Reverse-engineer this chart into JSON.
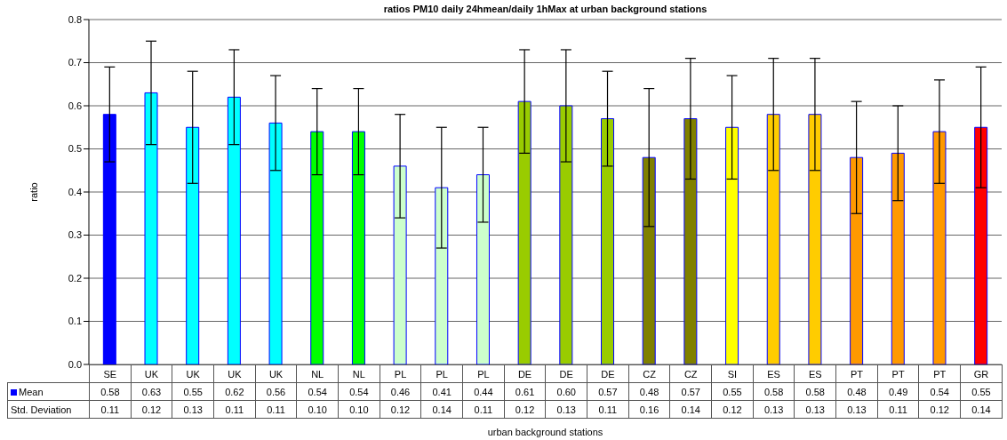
{
  "chart_data": {
    "type": "bar",
    "title": "ratios PM10 daily 24hmean/daily 1hMax at urban background stations",
    "xlabel": "urban background stations",
    "ylabel": "ratio",
    "categories": [
      "SE",
      "UK",
      "UK",
      "UK",
      "UK",
      "NL",
      "NL",
      "PL",
      "PL",
      "PL",
      "DE",
      "DE",
      "DE",
      "CZ",
      "CZ",
      "SI",
      "ES",
      "ES",
      "PT",
      "PT",
      "PT",
      "GR"
    ],
    "series": [
      {
        "name": "Mean",
        "color": "#0000ff",
        "colors": [
          "#0000ff",
          "#00ffff",
          "#00ffff",
          "#00ffff",
          "#00ffff",
          "#00ff00",
          "#00ff00",
          "#ccffcc",
          "#ccffcc",
          "#ccffcc",
          "#99cc00",
          "#99cc00",
          "#99cc00",
          "#808000",
          "#808000",
          "#ffff00",
          "#ffcc00",
          "#ffcc00",
          "#ff9900",
          "#ff9900",
          "#ff9900",
          "#ff0000"
        ],
        "values": [
          0.58,
          0.63,
          0.55,
          0.62,
          0.56,
          0.54,
          0.54,
          0.46,
          0.41,
          0.44,
          0.61,
          0.6,
          0.57,
          0.48,
          0.57,
          0.55,
          0.58,
          0.58,
          0.48,
          0.49,
          0.54,
          0.55
        ],
        "errors": [
          0.11,
          0.12,
          0.13,
          0.11,
          0.11,
          0.1,
          0.1,
          0.12,
          0.14,
          0.11,
          0.12,
          0.13,
          0.11,
          0.16,
          0.14,
          0.12,
          0.13,
          0.13,
          0.13,
          0.11,
          0.12,
          0.14
        ]
      }
    ],
    "value_labels": [
      "0.58",
      "0.63",
      "0.55",
      "0.62",
      "0.56",
      "0.54",
      "0.54",
      "0.46",
      "0.41",
      "0.44",
      "0.61",
      "0.60",
      "0.57",
      "0.48",
      "0.57",
      "0.55",
      "0.58",
      "0.58",
      "0.48",
      "0.49",
      "0.54",
      "0.55"
    ],
    "annotations": [
      "Std. Deviation",
      "0.11",
      "0.12",
      "0.13",
      "0.11",
      "0.11",
      "0.10",
      "0.10",
      "0.12",
      "0.14",
      "0.11",
      "0.12",
      "0.13",
      "0.11",
      "0.16",
      "0.14",
      "0.12",
      "0.13",
      "0.13",
      "0.13",
      "0.11",
      "0.12",
      "0.14"
    ],
    "ylim": [
      0,
      0.8
    ],
    "yticks": [
      {
        "value": 0,
        "label": "0.0"
      },
      {
        "value": 0.1,
        "label": "0.1"
      },
      {
        "value": 0.2,
        "label": "0.2"
      },
      {
        "value": 0.3,
        "label": "0.3"
      },
      {
        "value": 0.4,
        "label": "0.4"
      },
      {
        "value": 0.5,
        "label": "0.5"
      },
      {
        "value": 0.6,
        "label": "0.6"
      },
      {
        "value": 0.7,
        "label": "0.7"
      },
      {
        "value": 0.8,
        "label": "0.8"
      }
    ],
    "grid": "y",
    "legend": "bottom left"
  }
}
